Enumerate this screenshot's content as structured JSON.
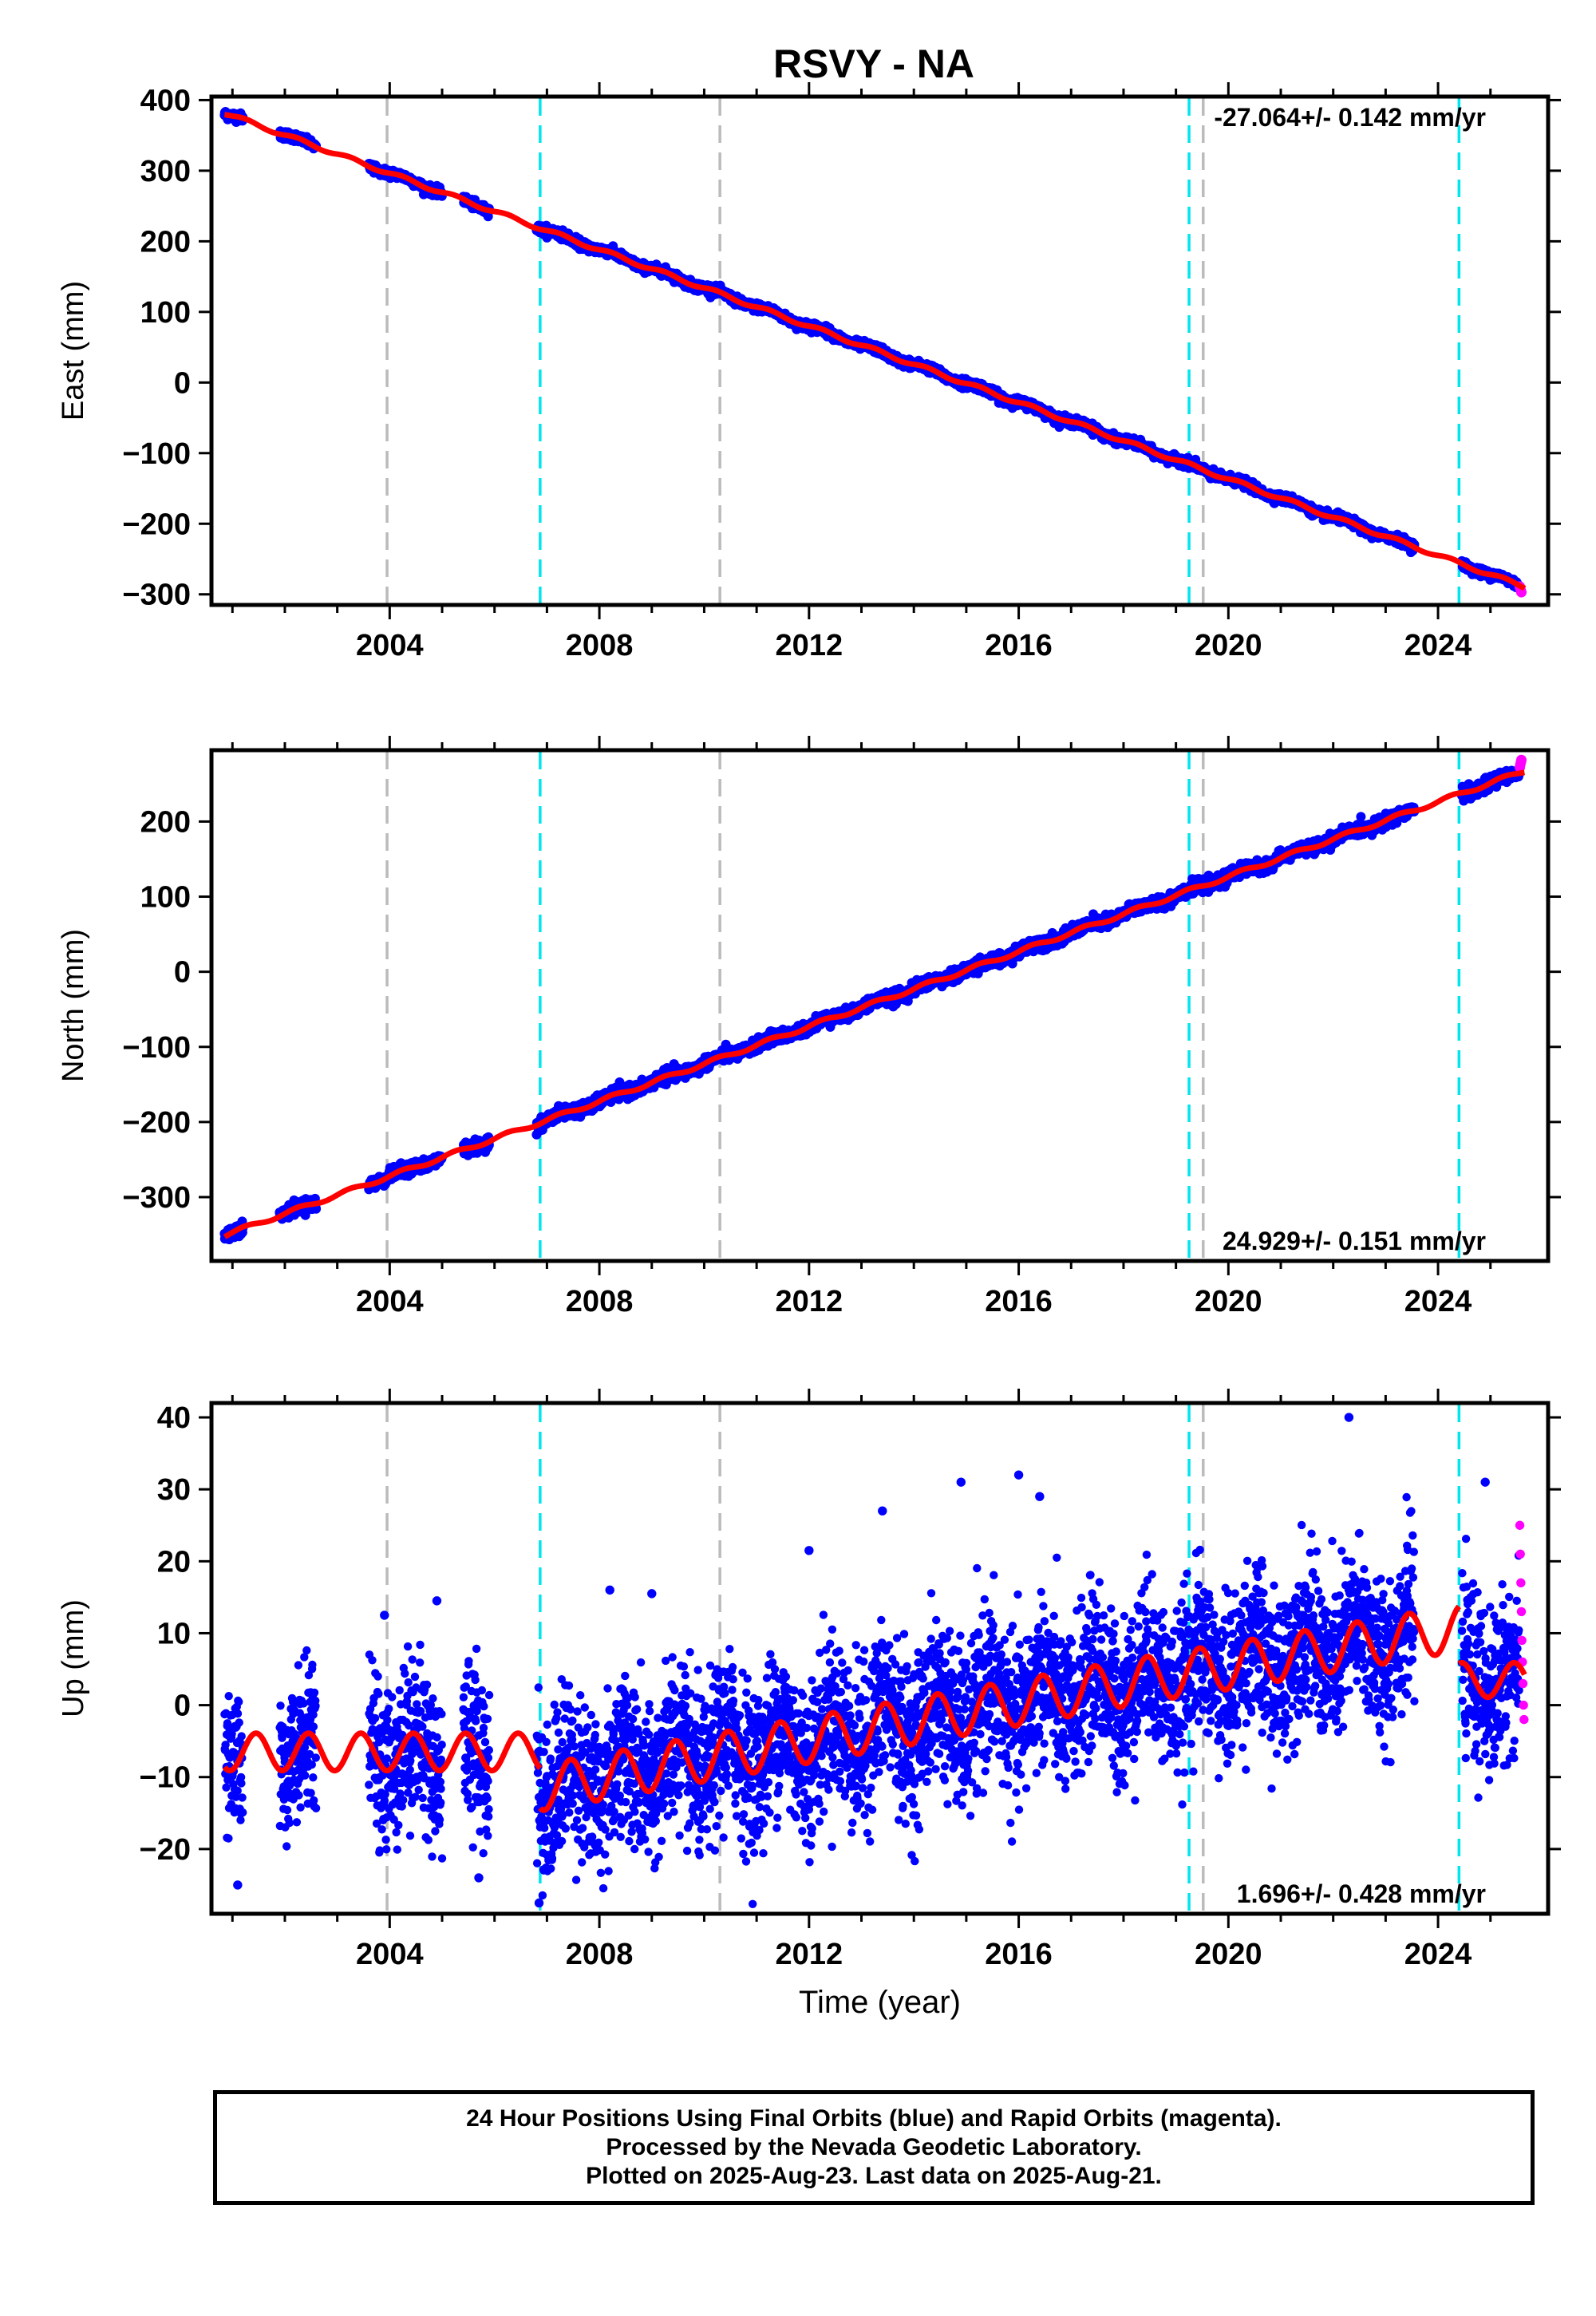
{
  "title": "RSVY - NA",
  "colors": {
    "final_orbits": "#0000ff",
    "rapid_orbits": "#ff00ff",
    "model": "#ff0000",
    "equipment_change": "#00e5ee",
    "other_event": "#bbbbbb",
    "axis": "#000000"
  },
  "chart_data": [
    {
      "type": "scatter",
      "component": "east",
      "ylabel": "East (mm)",
      "xlim": [
        2000.6,
        2026.1
      ],
      "ylim": [
        -315,
        405
      ],
      "yticks": [
        400,
        300,
        200,
        100,
        0,
        -100,
        -200,
        -300
      ],
      "xticks": [
        2004,
        2008,
        2012,
        2016,
        2020,
        2024
      ],
      "xtick_labels": [
        "2004",
        "2008",
        "2012",
        "2016",
        "2020",
        "2024"
      ],
      "ytick_labels": [
        "400",
        "300",
        "200",
        "100",
        "0",
        "−100",
        "−200",
        "−300"
      ],
      "rate_label": "-27.064+/- 0.142 mm/yr",
      "rate_position": "top-right",
      "trend": {
        "t0": 2000.8,
        "value_at_t0": 383,
        "rate_mm_per_yr": -27.064,
        "annual_amplitude": 2.5
      },
      "scatter_sigma": 3,
      "rapid_tail_values": [
        -289,
        -292,
        -295,
        -297
      ]
    },
    {
      "type": "scatter",
      "component": "north",
      "ylabel": "North (mm)",
      "xlim": [
        2000.6,
        2026.1
      ],
      "ylim": [
        -385,
        295
      ],
      "yticks": [
        200,
        100,
        0,
        -100,
        -200,
        -300
      ],
      "xticks": [
        2004,
        2008,
        2012,
        2016,
        2020,
        2024
      ],
      "xtick_labels": [
        "2004",
        "2008",
        "2012",
        "2016",
        "2020",
        "2024"
      ],
      "ytick_labels": [
        "200",
        "100",
        "0",
        "−100",
        "−200",
        "−300"
      ],
      "rate_label": "24.929+/- 0.151 mm/yr",
      "rate_position": "bottom-right",
      "trend": {
        "t0": 2000.8,
        "value_at_t0": -352,
        "rate_mm_per_yr": 24.929,
        "annual_amplitude": 2.5
      },
      "scatter_sigma": 4,
      "rapid_tail_values": [
        272,
        276,
        279,
        282
      ]
    },
    {
      "type": "scatter",
      "component": "up",
      "ylabel": "Up (mm)",
      "xlabel": "Time (year)",
      "xlim": [
        2000.6,
        2026.1
      ],
      "ylim": [
        -29,
        42
      ],
      "yticks": [
        40,
        30,
        20,
        10,
        0,
        -10,
        -20
      ],
      "xticks": [
        2004,
        2008,
        2012,
        2016,
        2020,
        2024
      ],
      "xtick_labels": [
        "2004",
        "2008",
        "2012",
        "2016",
        "2020",
        "2024"
      ],
      "ytick_labels": [
        "40",
        "30",
        "20",
        "10",
        "0",
        "−10",
        "−20"
      ],
      "rate_label": "1.696+/- 0.428 mm/yr",
      "rate_position": "bottom-right",
      "model_segments": [
        {
          "start": 2000.85,
          "end": 2006.87,
          "offset": -6.5,
          "rate": 0.0,
          "amplitude": 2.6
        },
        {
          "start": 2006.87,
          "end": 2019.25,
          "offset": -11.5,
          "rate": 1.3,
          "amplitude": 3.2
        },
        {
          "start": 2019.25,
          "end": 2024.4,
          "offset": 4.5,
          "rate": 1.2,
          "amplitude": 3.2
        },
        {
          "start": 2024.4,
          "end": 2025.65,
          "offset": 3.5,
          "rate": 0.0,
          "amplitude": 2.4
        }
      ],
      "scatter_sigma": 5.5,
      "outliers": [
        {
          "x": 2022.3,
          "y": 40
        },
        {
          "x": 2016.0,
          "y": 32
        },
        {
          "x": 2014.9,
          "y": 31
        },
        {
          "x": 2024.9,
          "y": 31
        },
        {
          "x": 2013.4,
          "y": 27
        },
        {
          "x": 2016.4,
          "y": 29
        },
        {
          "x": 2006.85,
          "y": -27.5
        },
        {
          "x": 2001.1,
          "y": -25
        },
        {
          "x": 2005.7,
          "y": -24
        },
        {
          "x": 2004.9,
          "y": 14.5
        },
        {
          "x": 2008.2,
          "y": 16
        },
        {
          "x": 2009.0,
          "y": 15.5
        },
        {
          "x": 2012.0,
          "y": 21.5
        },
        {
          "x": 2003.9,
          "y": 12.5
        }
      ],
      "rapid_tail_values": [
        25,
        21,
        17,
        13,
        9,
        6,
        3,
        0,
        -2
      ]
    }
  ],
  "vertical_markers": [
    {
      "x": 2003.95,
      "kind": "other_event"
    },
    {
      "x": 2006.87,
      "kind": "equipment_change"
    },
    {
      "x": 2010.3,
      "kind": "other_event"
    },
    {
      "x": 2019.25,
      "kind": "equipment_change"
    },
    {
      "x": 2019.52,
      "kind": "other_event"
    },
    {
      "x": 2024.4,
      "kind": "equipment_change"
    }
  ],
  "data_gaps": [
    [
      2001.2,
      2001.9
    ],
    [
      2002.6,
      2003.6
    ],
    [
      2005.0,
      2005.4
    ],
    [
      2005.9,
      2006.8
    ],
    [
      2023.55,
      2024.45
    ]
  ],
  "caption": {
    "line1": "24 Hour Positions Using Final Orbits (blue) and Rapid Orbits (magenta).",
    "line2": "Processed by the Nevada Geodetic Laboratory.",
    "line3": "Plotted on 2025-Aug-23. Last data on 2025-Aug-21."
  }
}
